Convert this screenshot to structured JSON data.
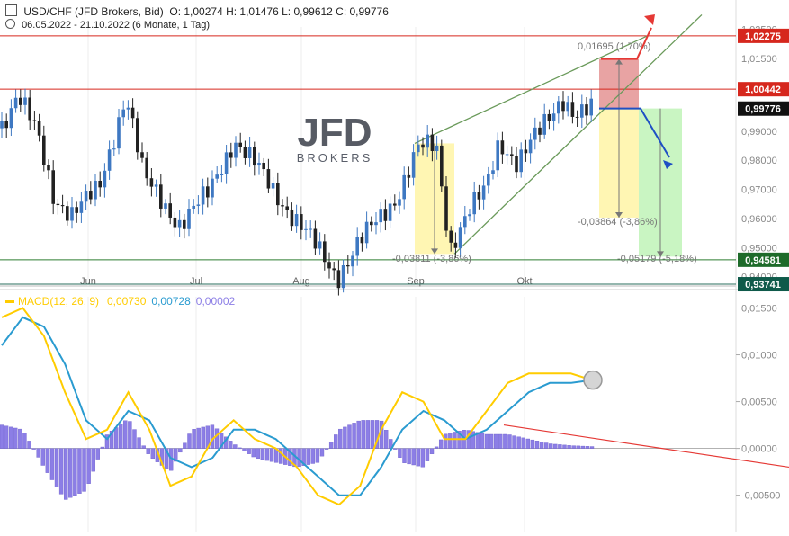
{
  "header": {
    "title": "USD/CHF (JFD Brokers, Bid)",
    "ohlc": "O: 1,00274  H: 1,01476  L: 0,99612  C: 0,99776",
    "range": "06.05.2022 - 21.10.2022  (6 Monate, 1 Tag)"
  },
  "logo": {
    "main": "JFD",
    "sub": "BROKERS"
  },
  "colors": {
    "up": "#3e78c2",
    "down": "#222222",
    "resistance": "#d6271d",
    "support": "#2e7d32",
    "channel": "#6a9a5a",
    "macd": "#ffcc00",
    "signal": "#2a9bd0",
    "hist": "#8c7ee6",
    "yellow_box": "#fff6b3",
    "green_box": "#c9f5c2",
    "red_box": "#e8a3a3"
  },
  "chart_data": [
    {
      "type": "candlestick",
      "x_ticks": [
        "Jun",
        "Jul",
        "Aug",
        "Sep",
        "Okt"
      ],
      "y_ticks": [
        "1,02500",
        "1,01500",
        "0,99000",
        "0,98000",
        "0,97000",
        "0,96000",
        "0,95000",
        "0,94000"
      ],
      "ylim": [
        0.9368,
        1.0258
      ],
      "levels": [
        {
          "name": "resistance-high",
          "value": 1.02275,
          "label": "1,02275"
        },
        {
          "name": "resistance",
          "value": 1.00442,
          "label": "1,00442"
        },
        {
          "name": "last-close",
          "value": 0.99776,
          "label": "0,99776"
        },
        {
          "name": "support",
          "value": 0.94581,
          "label": "0,94581"
        },
        {
          "name": "support-low",
          "value": 0.93741,
          "label": "0,93741"
        }
      ],
      "annotations": [
        {
          "text": "0,01695 (1,70%)"
        },
        {
          "text": "-0,03811 (-3,86%)"
        },
        {
          "text": "-0,03864 (-3,86%)"
        },
        {
          "text": "-0,05179 (-5,18%)"
        }
      ]
    },
    {
      "type": "line",
      "legend": [
        {
          "text": "MACD(12, 26, 9)",
          "color": "#ffcc00"
        },
        {
          "text": "0,00730",
          "color": "#ffcc00"
        },
        {
          "text": "0,00728",
          "color": "#2a9bd0"
        },
        {
          "text": "0,00002",
          "color": "#8c7ee6"
        }
      ],
      "y_ticks": [
        "0,01500",
        "0,01000",
        "0,00500",
        "0,00000",
        "-0,00500"
      ],
      "ylim": [
        -0.0083,
        0.0162
      ],
      "x": [
        0,
        5,
        10,
        15,
        20,
        25,
        30,
        35,
        40,
        45,
        50,
        55,
        60,
        65,
        70,
        75,
        80,
        85,
        90,
        95,
        100,
        105,
        110,
        115,
        120,
        125,
        130,
        135,
        140
      ],
      "series": [
        {
          "name": "MACD",
          "values": [
            0.014,
            0.015,
            0.012,
            0.006,
            0.001,
            0.002,
            0.006,
            0.002,
            -0.004,
            -0.003,
            0.001,
            0.003,
            0.001,
            0.0,
            -0.002,
            -0.005,
            -0.006,
            -0.004,
            0.002,
            0.006,
            0.005,
            0.001,
            0.001,
            0.004,
            0.007,
            0.008,
            0.008,
            0.008,
            0.0073
          ]
        },
        {
          "name": "Signal",
          "values": [
            0.011,
            0.014,
            0.013,
            0.009,
            0.003,
            0.001,
            0.004,
            0.003,
            -0.001,
            -0.002,
            -0.001,
            0.002,
            0.002,
            0.001,
            -0.001,
            -0.003,
            -0.005,
            -0.005,
            -0.002,
            0.002,
            0.004,
            0.003,
            0.001,
            0.002,
            0.004,
            0.006,
            0.007,
            0.007,
            0.0073
          ]
        },
        {
          "name": "Histogram",
          "values": [
            0.0025,
            0.002,
            -0.002,
            -0.0055,
            -0.0045,
            0.0015,
            0.0032,
            -0.0008,
            -0.0025,
            0.002,
            0.0025,
            0.0005,
            -0.001,
            -0.0015,
            -0.002,
            -0.0015,
            0.002,
            0.003,
            0.003,
            -0.0015,
            -0.002,
            0.0015,
            0.002,
            0.0015,
            0.0015,
            0.001,
            0.0005,
            0.0003,
            0.0002
          ]
        }
      ]
    }
  ]
}
